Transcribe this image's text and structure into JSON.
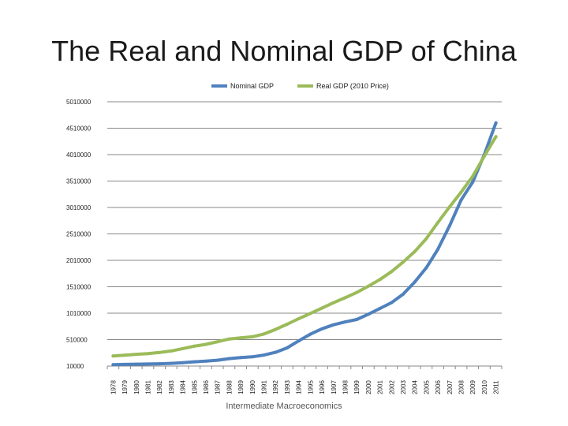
{
  "slide": {
    "title": "The Real and Nominal GDP of China",
    "footer": "Intermediate Macroeconomics"
  },
  "colors": {
    "nominal": "#4f81bd",
    "real": "#9bbb59",
    "grid": "#888888"
  },
  "chart_data": {
    "type": "line",
    "title": "The Real and Nominal GDP of China",
    "xlabel": "",
    "ylabel": "",
    "ylim": [
      10000,
      5010000
    ],
    "yticks": [
      "10000",
      "510000",
      "1010000",
      "1510000",
      "2010000",
      "2510000",
      "3010000",
      "3510000",
      "4010000",
      "4510000",
      "5010000"
    ],
    "grid": true,
    "legend": "top-center",
    "categories": [
      "1978",
      "1979",
      "1980",
      "1981",
      "1982",
      "1983",
      "1984",
      "1985",
      "1986",
      "1987",
      "1988",
      "1989",
      "1990",
      "1991",
      "1992",
      "1993",
      "1994",
      "1995",
      "1996",
      "1997",
      "1998",
      "1999",
      "2000",
      "2001",
      "2002",
      "2003",
      "2004",
      "2005",
      "2006",
      "2007",
      "2008",
      "2009",
      "2010",
      "2011"
    ],
    "series": [
      {
        "name": "Nominal GDP",
        "key": "nominal",
        "values": [
          37000,
          41000,
          46000,
          49000,
          53000,
          60000,
          72000,
          90000,
          103000,
          121000,
          150000,
          170000,
          185000,
          217000,
          269000,
          353000,
          486000,
          613000,
          714000,
          790000,
          844000,
          890000,
          990000,
          1100000,
          1210000,
          1370000,
          1600000,
          1870000,
          2220000,
          2660000,
          3150000,
          3490000,
          4010000,
          4610000
        ]
      },
      {
        "name": "Real GDP (2010 Price)",
        "key": "real",
        "values": [
          200000,
          215000,
          232000,
          244000,
          266000,
          295000,
          340000,
          386000,
          420000,
          469000,
          522000,
          543000,
          564000,
          616000,
          703000,
          801000,
          906000,
          1005000,
          1105000,
          1208000,
          1302000,
          1403000,
          1521000,
          1647000,
          1797000,
          1977000,
          2176000,
          2421000,
          2727000,
          3020000,
          3300000,
          3600000,
          3980000,
          4350000
        ]
      }
    ]
  }
}
